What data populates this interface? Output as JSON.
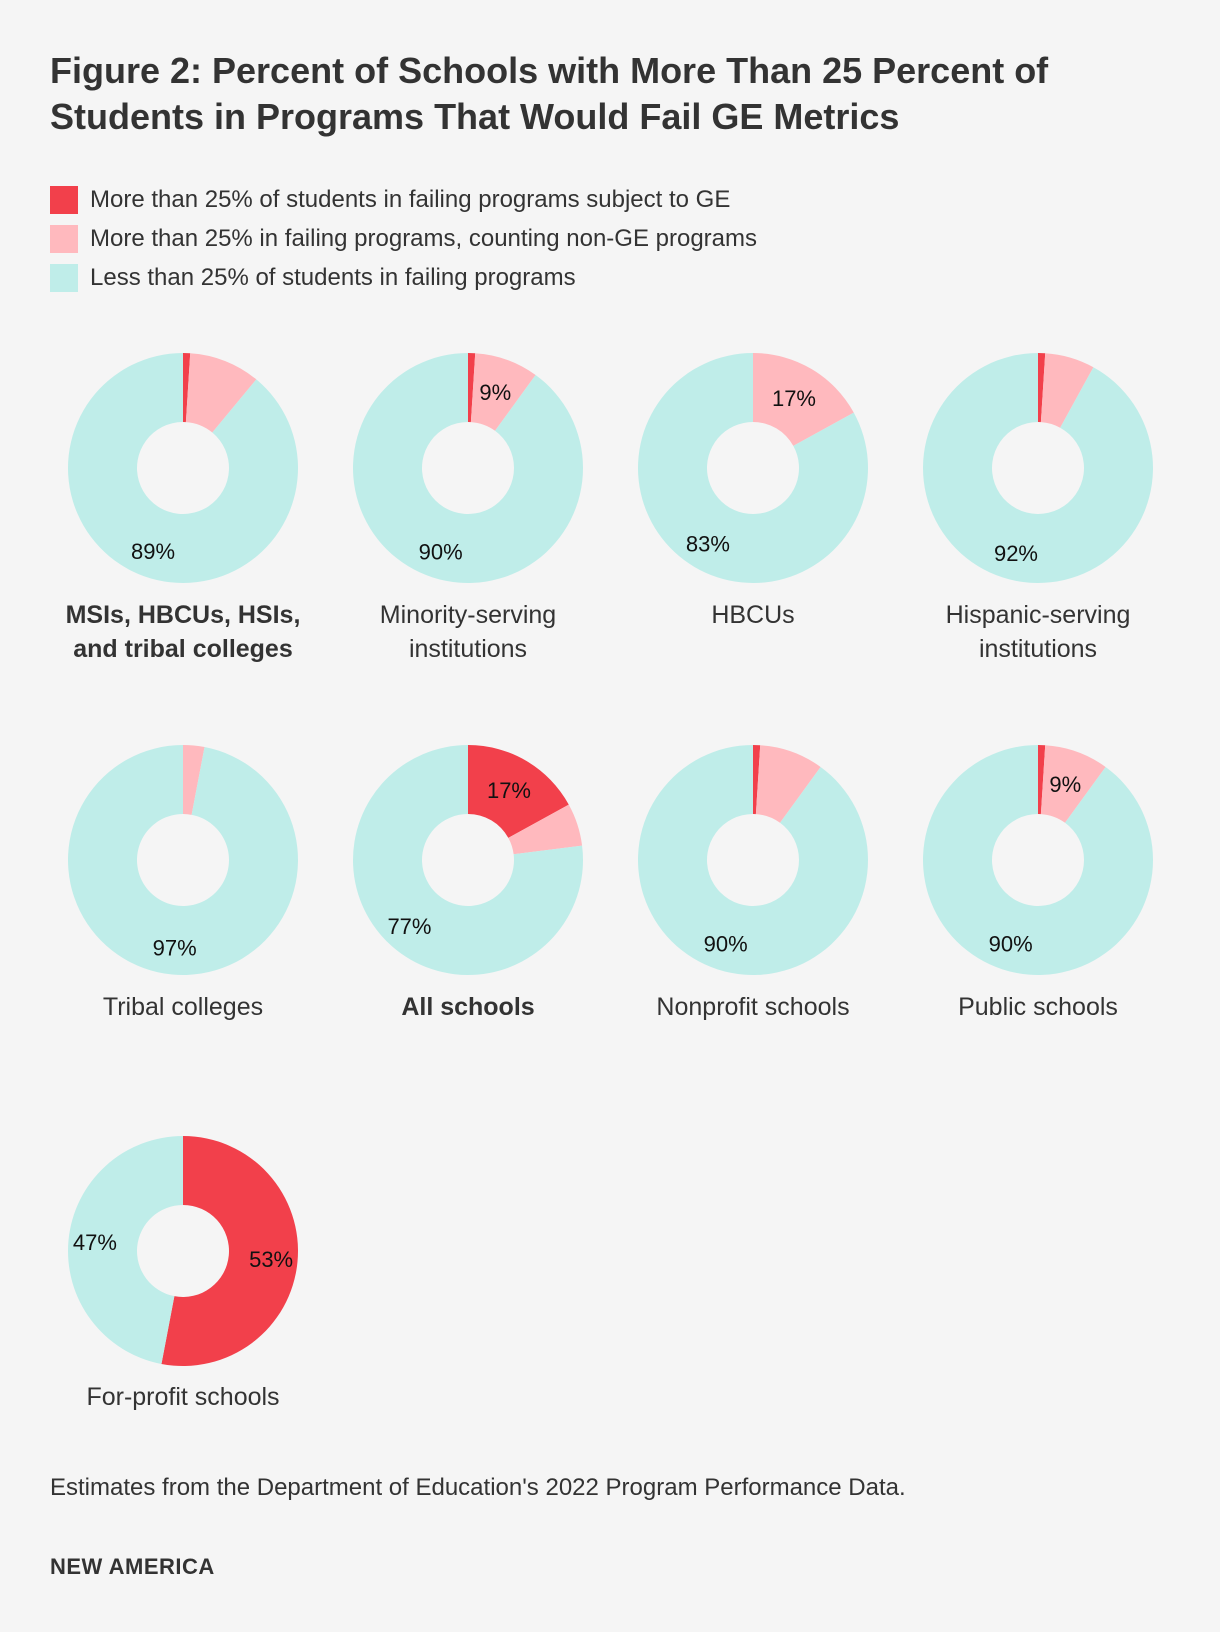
{
  "title": "Figure 2: Percent of Schools with More Than 25 Percent of Students in Programs That Would Fail GE Metrics",
  "legend": [
    {
      "label": "More than 25% of students in failing programs subject to GE",
      "color": "#f2404b"
    },
    {
      "label": "More than 25% in failing programs, counting non-GE programs",
      "color": "#ffb9be"
    },
    {
      "label": "Less than 25% of students in failing programs",
      "color": "#bfede9"
    }
  ],
  "chart_data": {
    "type": "pie",
    "variant": "donut",
    "series_names": [
      "More than 25% of students in failing programs subject to GE",
      "More than 25% in failing programs, counting non-GE programs",
      "Less than 25% of students in failing programs"
    ],
    "colors": [
      "#f2404b",
      "#ffb9be",
      "#bfede9"
    ],
    "charts": [
      {
        "name": "MSIs, HBCUs, HSIs, and tribal colleges",
        "bold": true,
        "values": [
          1,
          10,
          89
        ],
        "labels": [
          "",
          "",
          "89%"
        ]
      },
      {
        "name": "Minority-serving institutions",
        "bold": false,
        "values": [
          1,
          9,
          90
        ],
        "labels": [
          "",
          "9%",
          "90%"
        ]
      },
      {
        "name": "HBCUs",
        "bold": false,
        "values": [
          0,
          17,
          83
        ],
        "labels": [
          "",
          "17%",
          "83%"
        ]
      },
      {
        "name": "Hispanic-serving institutions",
        "bold": false,
        "values": [
          1,
          7,
          92
        ],
        "labels": [
          "",
          "",
          "92%"
        ]
      },
      {
        "name": "Tribal colleges",
        "bold": false,
        "values": [
          0,
          3,
          97
        ],
        "labels": [
          "",
          "",
          "97%"
        ]
      },
      {
        "name": "All schools",
        "bold": true,
        "values": [
          17,
          6,
          77
        ],
        "labels": [
          "17%",
          "",
          "77%"
        ]
      },
      {
        "name": "Nonprofit schools",
        "bold": false,
        "values": [
          1,
          9,
          90
        ],
        "labels": [
          "",
          "",
          "90%"
        ]
      },
      {
        "name": "Public schools",
        "bold": false,
        "values": [
          1,
          9,
          90
        ],
        "labels": [
          "",
          "9%",
          "90%"
        ]
      },
      {
        "name": "For-profit schools",
        "bold": false,
        "values": [
          53,
          0,
          47
        ],
        "labels": [
          "53%",
          "",
          "47%"
        ]
      }
    ]
  },
  "footnote": "Estimates from the Department of Education's 2022 Program Performance Data.",
  "brand": "NEW AMERICA"
}
